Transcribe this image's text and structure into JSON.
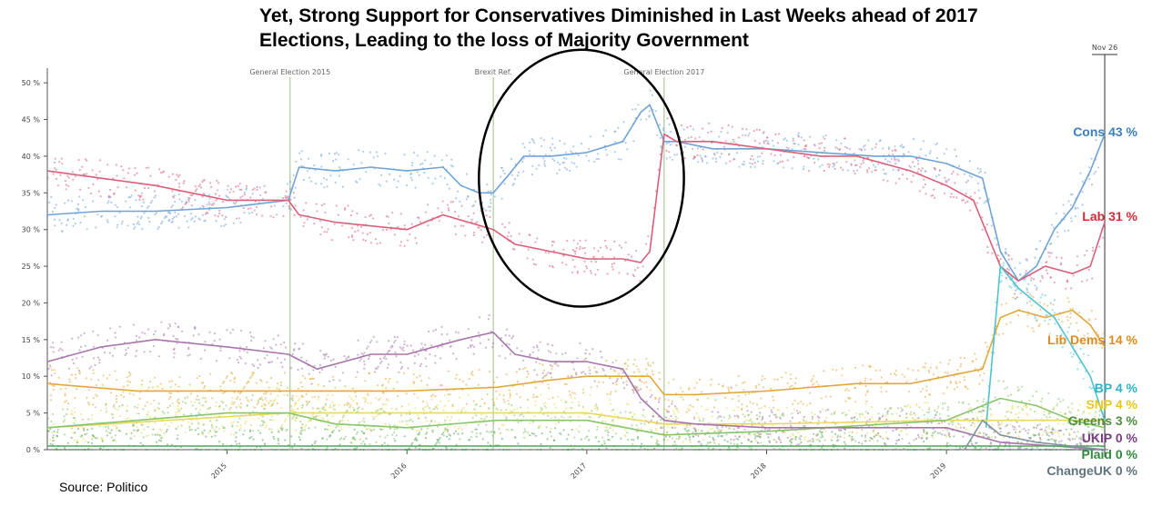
{
  "title_line1": "Yet, Strong Support for Conservatives Diminished in Last Weeks ahead of 2017",
  "title_line2": "Elections, Leading to the loss of Majority Government",
  "source": "Source: Politico",
  "end_marker": "Nov 26",
  "chart_data": {
    "type": "line",
    "x_range": [
      2014.0,
      2019.9
    ],
    "ylim": [
      0,
      52
    ],
    "y_ticks": [
      0,
      5,
      10,
      15,
      20,
      25,
      30,
      35,
      40,
      45,
      50
    ],
    "y_tick_labels": [
      "0 %",
      "5 %",
      "10 %",
      "15 %",
      "20 %",
      "25 %",
      "30 %",
      "35 %",
      "40 %",
      "45 %",
      "50 %"
    ],
    "x_ticks": [
      2015,
      2016,
      2017,
      2018,
      2019
    ],
    "x_tick_labels": [
      "2015",
      "2016",
      "2017",
      "2018",
      "2019"
    ],
    "events": [
      {
        "label": "General Election 2015",
        "x": 2015.35
      },
      {
        "label": "Brexit Ref.",
        "x": 2016.48
      },
      {
        "label": "General Election 2017",
        "x": 2017.43
      }
    ],
    "annotation": {
      "type": "ellipse",
      "x_center": 2016.97,
      "y_center": 37,
      "x_halfwidth": 0.57,
      "y_halfwidth": 17.5
    },
    "series": [
      {
        "name": "Cons",
        "value_label": "43 %",
        "color": "#6fa3d8",
        "label_color": "#3a7fc1",
        "points": [
          [
            2014.0,
            32
          ],
          [
            2014.3,
            32.5
          ],
          [
            2014.6,
            32.5
          ],
          [
            2015.0,
            33
          ],
          [
            2015.34,
            34
          ],
          [
            2015.4,
            38.5
          ],
          [
            2015.6,
            38
          ],
          [
            2015.8,
            38.5
          ],
          [
            2016.0,
            38
          ],
          [
            2016.2,
            38.5
          ],
          [
            2016.3,
            36
          ],
          [
            2016.4,
            35
          ],
          [
            2016.48,
            35
          ],
          [
            2016.55,
            37
          ],
          [
            2016.65,
            40
          ],
          [
            2016.8,
            40
          ],
          [
            2017.0,
            40.5
          ],
          [
            2017.2,
            42
          ],
          [
            2017.3,
            46
          ],
          [
            2017.35,
            47
          ],
          [
            2017.43,
            42
          ],
          [
            2017.5,
            42
          ],
          [
            2017.7,
            41
          ],
          [
            2018.0,
            41
          ],
          [
            2018.3,
            40.5
          ],
          [
            2018.6,
            40
          ],
          [
            2018.8,
            40
          ],
          [
            2019.0,
            39
          ],
          [
            2019.2,
            37
          ],
          [
            2019.3,
            27
          ],
          [
            2019.4,
            23
          ],
          [
            2019.5,
            25
          ],
          [
            2019.6,
            30
          ],
          [
            2019.7,
            33
          ],
          [
            2019.8,
            38
          ],
          [
            2019.88,
            43
          ]
        ]
      },
      {
        "name": "Lab",
        "value_label": "31 %",
        "color": "#d9607a",
        "label_color": "#d62a3a",
        "points": [
          [
            2014.0,
            38
          ],
          [
            2014.3,
            37
          ],
          [
            2014.6,
            36
          ],
          [
            2014.8,
            35
          ],
          [
            2015.0,
            34
          ],
          [
            2015.34,
            34
          ],
          [
            2015.4,
            32
          ],
          [
            2015.6,
            31
          ],
          [
            2015.8,
            30.5
          ],
          [
            2016.0,
            30
          ],
          [
            2016.2,
            32
          ],
          [
            2016.48,
            30
          ],
          [
            2016.6,
            28
          ],
          [
            2016.8,
            27
          ],
          [
            2017.0,
            26
          ],
          [
            2017.2,
            26
          ],
          [
            2017.3,
            25.5
          ],
          [
            2017.35,
            27
          ],
          [
            2017.43,
            43
          ],
          [
            2017.5,
            42
          ],
          [
            2017.7,
            42
          ],
          [
            2018.0,
            41
          ],
          [
            2018.3,
            40
          ],
          [
            2018.5,
            40
          ],
          [
            2018.8,
            38
          ],
          [
            2019.0,
            36
          ],
          [
            2019.15,
            34
          ],
          [
            2019.3,
            25
          ],
          [
            2019.4,
            23
          ],
          [
            2019.55,
            25
          ],
          [
            2019.7,
            24
          ],
          [
            2019.8,
            25
          ],
          [
            2019.88,
            31
          ]
        ]
      },
      {
        "name": "Lib Dems",
        "value_label": "14 %",
        "color": "#e2a83a",
        "label_color": "#e08a1e",
        "points": [
          [
            2014.0,
            9
          ],
          [
            2014.5,
            8
          ],
          [
            2015.0,
            8
          ],
          [
            2015.34,
            8
          ],
          [
            2015.5,
            8
          ],
          [
            2016.0,
            8
          ],
          [
            2016.5,
            8.5
          ],
          [
            2016.8,
            9.5
          ],
          [
            2017.0,
            10
          ],
          [
            2017.2,
            10
          ],
          [
            2017.35,
            10
          ],
          [
            2017.43,
            7.5
          ],
          [
            2017.6,
            7.5
          ],
          [
            2018.0,
            8
          ],
          [
            2018.5,
            9
          ],
          [
            2018.8,
            9
          ],
          [
            2019.0,
            10
          ],
          [
            2019.2,
            11
          ],
          [
            2019.3,
            18
          ],
          [
            2019.4,
            19
          ],
          [
            2019.55,
            18
          ],
          [
            2019.7,
            19
          ],
          [
            2019.8,
            17
          ],
          [
            2019.88,
            14
          ]
        ]
      },
      {
        "name": "BP",
        "value_label": "4 %",
        "color": "#4fc3d0",
        "label_color": "#2ab4c4",
        "points": [
          [
            2019.22,
            3
          ],
          [
            2019.3,
            25
          ],
          [
            2019.4,
            22
          ],
          [
            2019.5,
            20
          ],
          [
            2019.6,
            18
          ],
          [
            2019.7,
            14
          ],
          [
            2019.8,
            10
          ],
          [
            2019.88,
            4
          ]
        ]
      },
      {
        "name": "SNP",
        "value_label": "4 %",
        "color": "#ead85a",
        "label_color": "#e7c820",
        "points": [
          [
            2014.0,
            3
          ],
          [
            2015.0,
            4.5
          ],
          [
            2015.34,
            5
          ],
          [
            2016.0,
            5
          ],
          [
            2017.0,
            5
          ],
          [
            2017.43,
            3.5
          ],
          [
            2018.0,
            3.5
          ],
          [
            2019.0,
            4
          ],
          [
            2019.88,
            4
          ]
        ]
      },
      {
        "name": "Greens",
        "value_label": "3 %",
        "color": "#86c56a",
        "label_color": "#4f8f3a",
        "points": [
          [
            2014.0,
            3
          ],
          [
            2014.5,
            4
          ],
          [
            2015.0,
            5
          ],
          [
            2015.34,
            5
          ],
          [
            2015.6,
            3.5
          ],
          [
            2016.0,
            3
          ],
          [
            2016.5,
            4
          ],
          [
            2017.0,
            4
          ],
          [
            2017.43,
            2
          ],
          [
            2018.0,
            2.5
          ],
          [
            2019.0,
            4
          ],
          [
            2019.3,
            7
          ],
          [
            2019.5,
            6
          ],
          [
            2019.7,
            4
          ],
          [
            2019.88,
            3
          ]
        ]
      },
      {
        "name": "UKIP",
        "value_label": "0 %",
        "color": "#a775ac",
        "label_color": "#7a3e80",
        "points": [
          [
            2014.0,
            12
          ],
          [
            2014.3,
            14
          ],
          [
            2014.6,
            15
          ],
          [
            2015.0,
            14
          ],
          [
            2015.34,
            13
          ],
          [
            2015.5,
            11
          ],
          [
            2015.8,
            13
          ],
          [
            2016.0,
            13
          ],
          [
            2016.3,
            15
          ],
          [
            2016.48,
            16
          ],
          [
            2016.6,
            13
          ],
          [
            2016.8,
            12
          ],
          [
            2017.0,
            12
          ],
          [
            2017.2,
            11
          ],
          [
            2017.3,
            7
          ],
          [
            2017.43,
            4
          ],
          [
            2017.6,
            3.5
          ],
          [
            2018.0,
            3
          ],
          [
            2018.5,
            3
          ],
          [
            2019.0,
            3
          ],
          [
            2019.3,
            1
          ],
          [
            2019.6,
            0.5
          ],
          [
            2019.88,
            0
          ]
        ]
      },
      {
        "name": "Plaid",
        "value_label": "0 %",
        "color": "#4fa65a",
        "label_color": "#2f8a3c",
        "points": [
          [
            2014.0,
            0.5
          ],
          [
            2019.88,
            0.5
          ]
        ]
      },
      {
        "name": "ChangeUK",
        "value_label": "0 %",
        "color": "#7f93a0",
        "label_color": "#5f7480",
        "points": [
          [
            2019.1,
            0
          ],
          [
            2019.2,
            4
          ],
          [
            2019.3,
            2
          ],
          [
            2019.5,
            1
          ],
          [
            2019.88,
            0
          ]
        ]
      }
    ]
  }
}
